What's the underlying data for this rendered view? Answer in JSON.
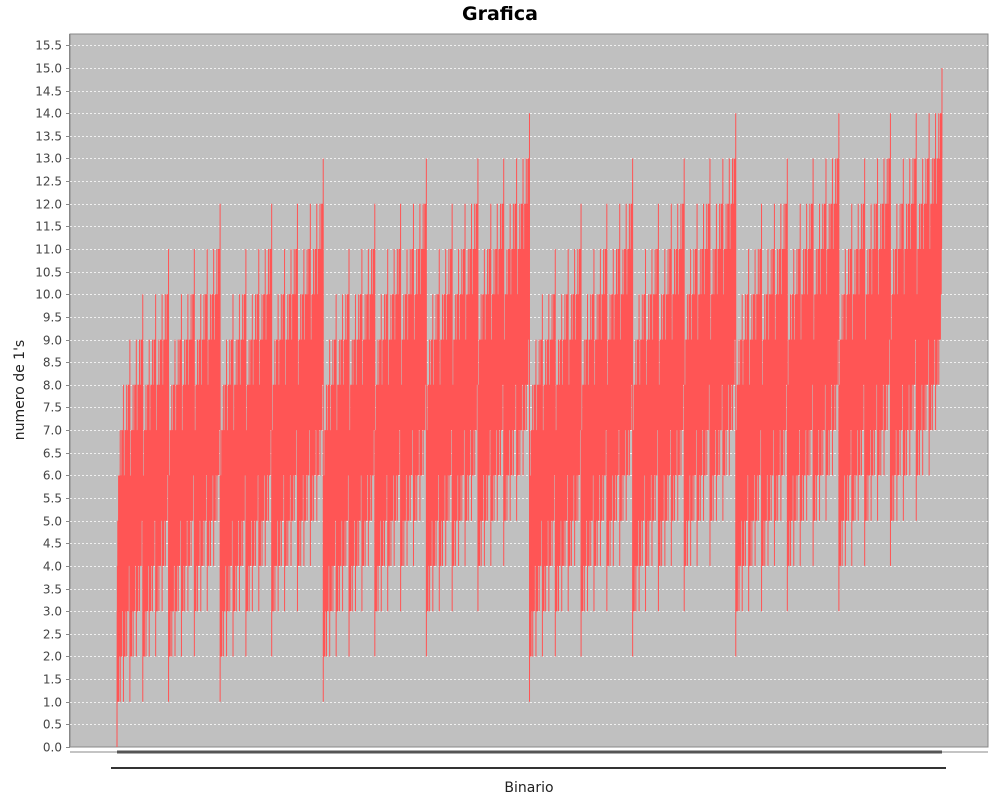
{
  "chart_data": {
    "type": "line",
    "title": "Grafica",
    "xlabel": "Binario",
    "ylabel": "numero de 1's",
    "ylim": [
      0,
      15.75
    ],
    "ytick_step": 0.5,
    "yticks": [
      "0.0",
      "0.5",
      "1.0",
      "1.5",
      "2.0",
      "2.5",
      "3.0",
      "3.5",
      "4.0",
      "4.5",
      "5.0",
      "5.5",
      "6.0",
      "6.5",
      "7.0",
      "7.5",
      "8.0",
      "8.5",
      "9.0",
      "9.5",
      "10.0",
      "10.5",
      "11.0",
      "11.5",
      "12.0",
      "12.5",
      "13.0",
      "13.5",
      "14.0",
      "14.5",
      "15.0",
      "15.5"
    ],
    "x_tick_labels": "none",
    "grid": true,
    "legend": "none",
    "series": [
      {
        "description": "count of 1 bits in the binary representation of each integer n, plotted consecutively",
        "x_start": 0,
        "x_end": 32767,
        "max_value": 15,
        "min_value": 0
      }
    ],
    "colors": {
      "series": "#ff5555",
      "plot_background": "#c0c0c0",
      "grid": "#ffffff",
      "axis": "#888888"
    }
  }
}
